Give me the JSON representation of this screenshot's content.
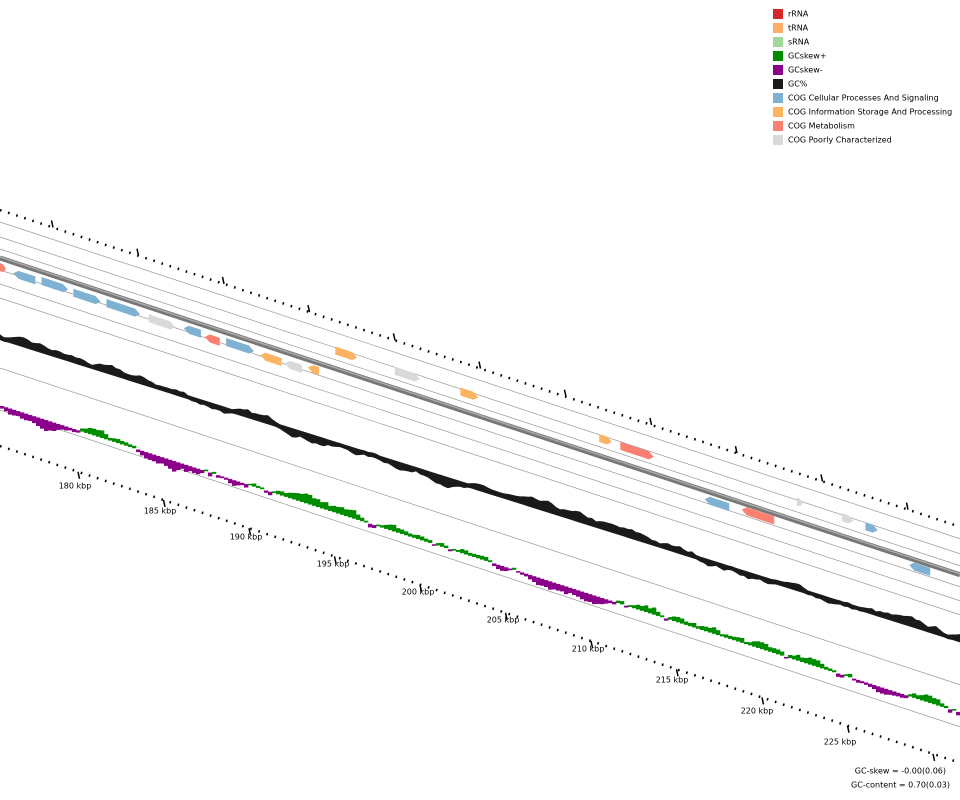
{
  "legend": [
    {
      "label": "rRNA",
      "color": "#d62728"
    },
    {
      "label": "tRNA",
      "color": "#fdae6b"
    },
    {
      "label": "sRNA",
      "color": "#a1d99b"
    },
    {
      "label": "GCskew+",
      "color": "#008c00"
    },
    {
      "label": "GCskew-",
      "color": "#8b008b"
    },
    {
      "label": "GC%",
      "color": "#1a1a1a"
    },
    {
      "label": "COG Cellular Processes And Signaling",
      "color": "#7fb1d3"
    },
    {
      "label": "COG Information Storage And Processing",
      "color": "#fdb462"
    },
    {
      "label": "COG Metabolism",
      "color": "#fb8072"
    },
    {
      "label": "COG Poorly Characterized",
      "color": "#d9d9d9"
    }
  ],
  "scale_labels": [
    "180 kbp",
    "185 kbp",
    "190 kbp",
    "195 kbp",
    "200 kbp",
    "205 kbp",
    "210 kbp",
    "215 kbp",
    "220 kbp",
    "225 kbp"
  ],
  "footer": [
    "GC-skew = -0.00(0.06)",
    "GC-content = 0.70(0.03)"
  ]
}
